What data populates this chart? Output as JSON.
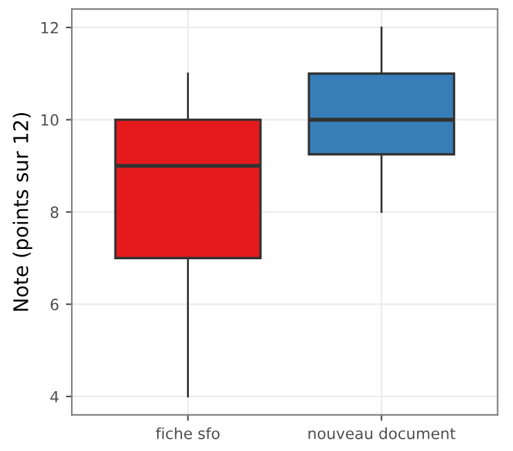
{
  "chart_data": {
    "type": "box",
    "ylabel": "Note (points sur 12)",
    "categories": [
      "fiche sfo",
      "nouveau document"
    ],
    "boxes": [
      {
        "low": 4,
        "q1": 7,
        "median": 9,
        "q3": 10,
        "high": 11
      },
      {
        "low": 8,
        "q1": 9.25,
        "median": 10,
        "q3": 11,
        "high": 12
      }
    ],
    "colors": [
      "#e41a1c",
      "#377eb8"
    ],
    "ylim": [
      3.6,
      12.4
    ],
    "yticks": [
      4,
      6,
      8,
      10,
      12
    ],
    "grid": true
  }
}
